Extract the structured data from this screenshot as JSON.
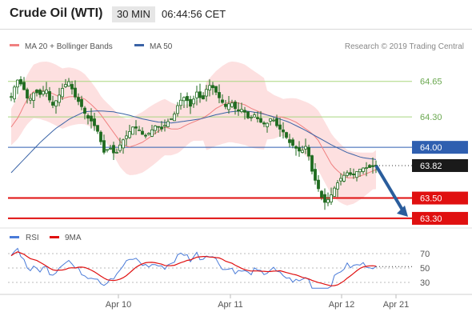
{
  "header": {
    "title": "Crude Oil (WTI)",
    "timeframe": "30 MIN",
    "time": "06:44:56 CET"
  },
  "legend": {
    "ma_boll": "MA 20 + Bollinger Bands",
    "ma50": "MA 50",
    "credit": "Research © 2019 Trading Central"
  },
  "rsi_legend": {
    "rsi": "RSI",
    "ma9": "9MA"
  },
  "colors": {
    "ma20": "#f08080",
    "band": "#fcd6d6",
    "ma50": "#3a63a6",
    "resist_green": "#a9d77f",
    "red_line": "#e01010",
    "candle": "#1f6b1f",
    "arrow": "#2a5d9c",
    "rsi": "#4a7bd8",
    "rsi_ma": "#e01010",
    "blue_level": "#2f5fb0"
  },
  "chart_data": {
    "type": "candlestick",
    "ylim": [
      63.26,
      64.9
    ],
    "x_ticks": [
      "Apr 10",
      "Apr 11",
      "Apr 12",
      "Apr 21"
    ],
    "levels": [
      {
        "label": "64.65",
        "value": 64.65,
        "style": "green"
      },
      {
        "label": "64.30",
        "value": 64.3,
        "style": "green"
      },
      {
        "label": "64.00",
        "value": 64.0,
        "style": "blue"
      },
      {
        "label": "63.82",
        "value": 63.82,
        "style": "current"
      },
      {
        "label": "63.50",
        "value": 63.5,
        "style": "red"
      },
      {
        "label": "63.30",
        "value": 63.3,
        "style": "red"
      }
    ],
    "close_path": [
      64.5,
      64.67,
      64.6,
      64.45,
      64.55,
      64.52,
      64.58,
      64.4,
      64.48,
      64.6,
      64.65,
      64.5,
      64.42,
      64.3,
      64.25,
      64.15,
      63.95,
      64.0,
      63.92,
      64.05,
      64.12,
      64.2,
      64.18,
      64.1,
      64.15,
      64.22,
      64.18,
      64.25,
      64.3,
      64.45,
      64.5,
      64.4,
      64.55,
      64.45,
      64.62,
      64.58,
      64.48,
      64.4,
      64.45,
      64.35,
      64.38,
      64.28,
      64.32,
      64.25,
      64.22,
      64.3,
      64.2,
      64.15,
      64.05,
      64.0,
      63.95,
      64.02,
      63.75,
      63.6,
      63.45,
      63.5,
      63.62,
      63.7,
      63.75,
      63.72,
      63.78,
      63.8,
      63.8,
      63.82
    ],
    "ma20": [
      64.2,
      64.3,
      64.45,
      64.55,
      64.56,
      64.55,
      64.52,
      64.48,
      64.5,
      64.5,
      64.48,
      64.42,
      64.35,
      64.25,
      64.15,
      64.05,
      64.0,
      64.02,
      64.05,
      64.1,
      64.15,
      64.2,
      64.18,
      64.18,
      64.22,
      64.25,
      64.28,
      64.32,
      64.38,
      64.42,
      64.45,
      64.44,
      64.42,
      64.38,
      64.35,
      64.32,
      64.3,
      64.3,
      64.28,
      64.25,
      64.2,
      64.15,
      64.08,
      63.95,
      63.82,
      63.75,
      63.7,
      63.7,
      63.72,
      63.75,
      63.78
    ],
    "ma50": [
      63.75,
      63.9,
      64.05,
      64.18,
      64.28,
      64.35,
      64.36,
      64.35,
      64.32,
      64.28,
      64.25,
      64.24,
      64.26,
      64.28,
      64.32,
      64.35,
      64.36,
      64.34,
      64.3,
      64.25,
      64.18,
      64.1,
      64.02,
      63.95,
      63.9,
      63.88
    ],
    "rsi_range": [
      20,
      80
    ],
    "rsi_ticks": [
      70,
      50,
      30
    ],
    "rsi_last": 52
  }
}
